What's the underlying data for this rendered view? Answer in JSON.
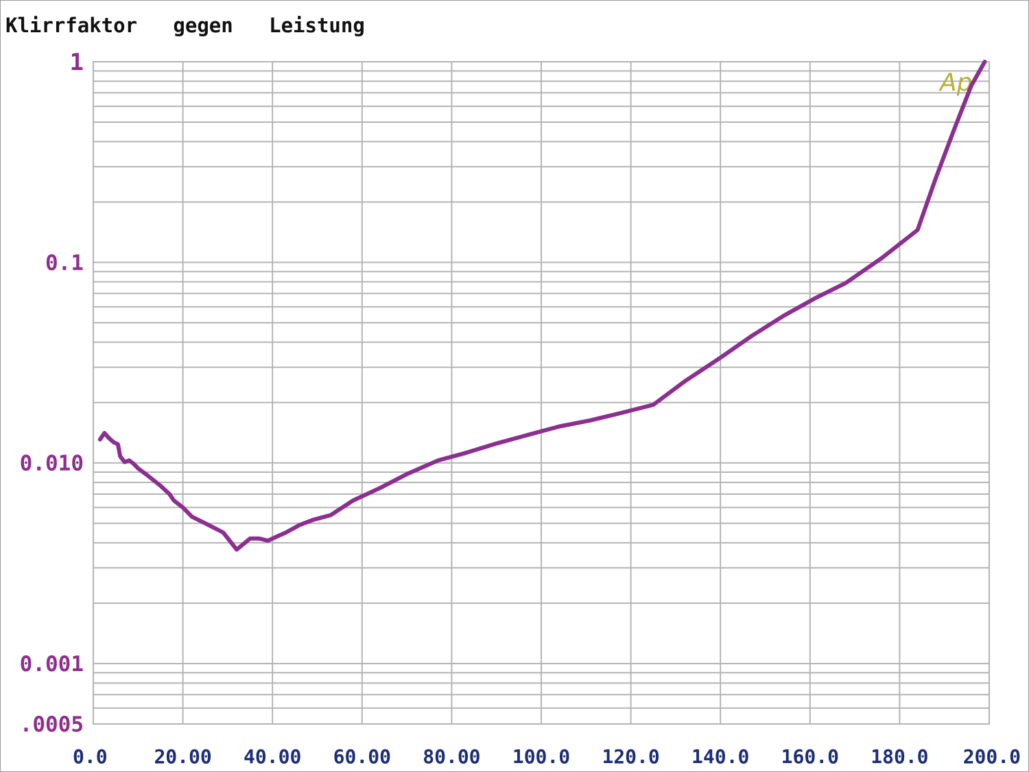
{
  "chart_data": {
    "type": "line",
    "title": "Klirrfaktor   gegen   Leistung",
    "xlabel": "",
    "ylabel": "",
    "xlim": [
      0,
      200
    ],
    "ylim": [
      0.0005,
      1
    ],
    "yscale": "log",
    "grid": true,
    "x_tick_labels": [
      "0.0",
      "20.00",
      "40.00",
      "60.00",
      "80.00",
      "100.0",
      "120.0",
      "140.0",
      "160.0",
      "180.0",
      "200.0"
    ],
    "y_tick_labels": [
      {
        "value": 1,
        "label": "1"
      },
      {
        "value": 0.1,
        "label": "0.1"
      },
      {
        "value": 0.01,
        "label": "0.010"
      },
      {
        "value": 0.001,
        "label": "0.001"
      },
      {
        "value": 0.0005,
        "label": ".0005"
      }
    ],
    "watermark": "Ap",
    "colors": {
      "line": "#8b2f91",
      "grid": "#b4b4b4",
      "ytick": "#8e2f8e",
      "xtick": "#1c2d7a",
      "watermark": "#b9b13a"
    },
    "series": [
      {
        "name": "",
        "x": [
          1.5,
          2.5,
          3.5,
          4.5,
          5.5,
          6,
          7,
          8,
          9,
          10,
          12,
          15,
          17,
          18,
          20,
          22,
          25,
          29,
          32,
          35,
          37,
          39,
          41,
          43,
          46,
          49,
          53,
          58,
          64,
          70,
          77,
          83,
          90,
          97,
          104,
          111,
          118,
          125,
          132,
          140,
          147,
          154,
          161,
          168,
          176,
          184,
          188,
          192,
          196,
          199
        ],
        "y": [
          0.0131,
          0.0141,
          0.0133,
          0.0127,
          0.0124,
          0.0108,
          0.0101,
          0.0103,
          0.0099,
          0.0094,
          0.0087,
          0.0077,
          0.007,
          0.0065,
          0.006,
          0.0054,
          0.005,
          0.0045,
          0.0037,
          0.0042,
          0.0042,
          0.0041,
          0.0043,
          0.0045,
          0.0049,
          0.0052,
          0.0055,
          0.0065,
          0.0075,
          0.0088,
          0.0103,
          0.0112,
          0.0125,
          0.0138,
          0.0152,
          0.0163,
          0.0178,
          0.0195,
          0.0255,
          0.0335,
          0.043,
          0.054,
          0.066,
          0.079,
          0.105,
          0.145,
          0.26,
          0.45,
          0.76,
          1.0
        ]
      }
    ]
  }
}
